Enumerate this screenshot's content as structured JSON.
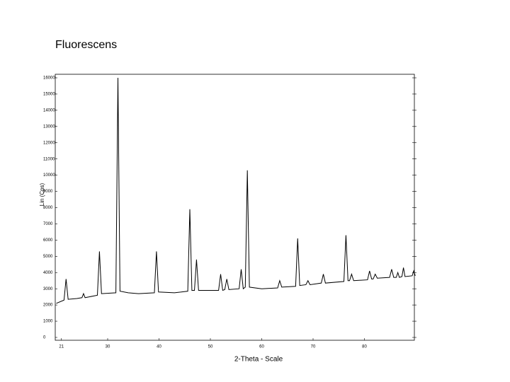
{
  "chart_data": {
    "type": "line",
    "title": "Fluorescens",
    "x_label": "2-Theta - Scale",
    "y_label": "Lin (Cps)",
    "x": [
      20,
      21.5,
      21.9,
      22.3,
      24,
      25,
      25.3,
      25.6,
      28,
      28.4,
      28.8,
      31.6,
      32.0,
      32.4,
      34,
      36,
      39.1,
      39.5,
      39.9,
      43,
      45.6,
      46.0,
      46.4,
      46.9,
      47.3,
      47.7,
      51.6,
      52.0,
      52.4,
      52.8,
      53.2,
      53.6,
      55.6,
      56.0,
      56.4,
      56.8,
      57.2,
      57.6,
      60,
      63.1,
      63.5,
      63.9,
      66.6,
      67.0,
      67.4,
      68.6,
      69.0,
      69.4,
      71.6,
      72.0,
      72.4,
      76.0,
      76.4,
      76.8,
      77.1,
      77.5,
      77.9,
      80.6,
      81.0,
      81.4,
      81.7,
      82.1,
      82.5,
      84.9,
      85.3,
      85.7,
      86.2,
      86.5,
      86.8,
      87.3,
      87.6,
      87.9,
      89.3,
      89.6,
      89.9
    ],
    "series": [
      {
        "color": "#000000",
        "values": [
          2100,
          2300,
          3600,
          2350,
          2400,
          2450,
          2700,
          2450,
          2600,
          5300,
          2700,
          2750,
          16000,
          2850,
          2750,
          2700,
          2750,
          5300,
          2800,
          2750,
          2850,
          7900,
          2900,
          2900,
          4800,
          2900,
          2900,
          3900,
          2900,
          2950,
          3600,
          2950,
          3000,
          4200,
          3000,
          3100,
          10300,
          3100,
          3000,
          3050,
          3500,
          3100,
          3150,
          6100,
          3200,
          3250,
          3500,
          3250,
          3350,
          3900,
          3350,
          3450,
          6300,
          3500,
          3500,
          3900,
          3500,
          3550,
          4100,
          3600,
          3600,
          3900,
          3650,
          3700,
          4200,
          3700,
          3700,
          4000,
          3700,
          3750,
          4300,
          3750,
          3800,
          4100,
          3800
        ]
      }
    ],
    "xlim": [
      20,
      90
    ],
    "ylim": [
      0,
      16000
    ],
    "xticks": [
      21,
      30,
      40,
      50,
      60,
      70,
      80
    ],
    "yticks": [
      0,
      1000,
      2000,
      3000,
      4000,
      5000,
      6000,
      7000,
      8000,
      9000,
      10000,
      11000,
      12000,
      13000,
      14000,
      15000,
      16000
    ]
  }
}
